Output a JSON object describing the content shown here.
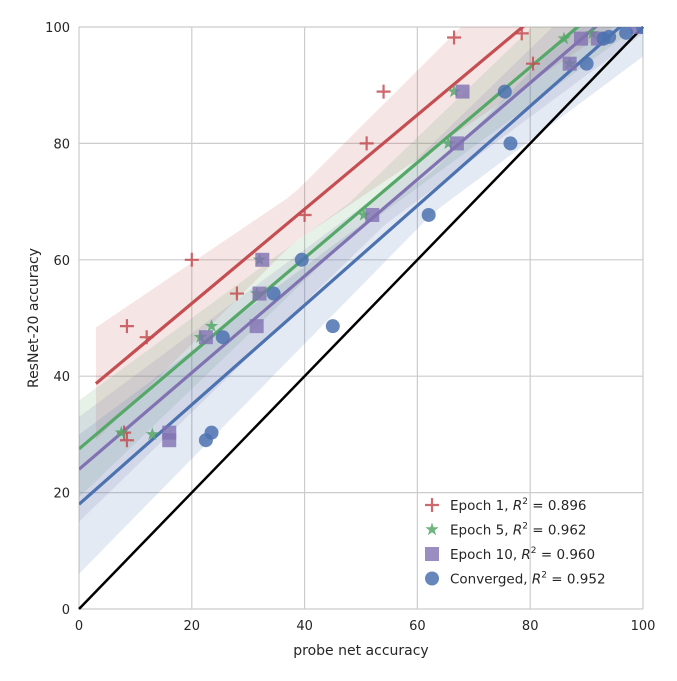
{
  "chart_data": {
    "type": "scatter",
    "xlabel": "probe net accuracy",
    "ylabel": "ResNet-20 accuracy",
    "xlim": [
      0,
      100
    ],
    "ylim": [
      0,
      100
    ],
    "xticks": [
      "0",
      "20",
      "40",
      "60",
      "80",
      "100"
    ],
    "yticks": [
      "0",
      "20",
      "40",
      "60",
      "80",
      "100"
    ],
    "grid": true,
    "legend_position": "bottom-right",
    "identity_line": true,
    "series": [
      {
        "name": "Epoch 1",
        "r2": "0.896",
        "marker": "plus",
        "color": "#c44e52",
        "fit": {
          "intercept": 36.3,
          "slope": 0.81,
          "xmin": 3,
          "xmax": 100
        },
        "points": [
          [
            8.5,
            48.6
          ],
          [
            12,
            46.7
          ],
          [
            20,
            60
          ],
          [
            28,
            54.2
          ],
          [
            40,
            67.7
          ],
          [
            51,
            80
          ],
          [
            54,
            88.9
          ],
          [
            66.5,
            98.2
          ],
          [
            78.5,
            98.9
          ],
          [
            80.5,
            93.7
          ],
          [
            8,
            30.3
          ],
          [
            8.5,
            29
          ]
        ]
      },
      {
        "name": "Epoch 5",
        "r2": "0.962",
        "marker": "star",
        "color": "#55a868",
        "fit": {
          "intercept": 27.5,
          "slope": 0.82,
          "xmin": 0,
          "xmax": 100
        },
        "points": [
          [
            7.5,
            30.3
          ],
          [
            13,
            30
          ],
          [
            21.5,
            46.7
          ],
          [
            23.5,
            48.6
          ],
          [
            31.5,
            54.2
          ],
          [
            32,
            60
          ],
          [
            50.5,
            67.7
          ],
          [
            65.5,
            80
          ],
          [
            66.5,
            88.9
          ],
          [
            86,
            98
          ],
          [
            87,
            93.7
          ],
          [
            91,
            98.9
          ]
        ]
      },
      {
        "name": "Epoch 10",
        "r2": "0.960",
        "marker": "square",
        "color": "#8172b2",
        "fit": {
          "intercept": 24,
          "slope": 0.83,
          "xmin": 0,
          "xmax": 100
        },
        "points": [
          [
            16,
            30.3
          ],
          [
            16,
            29
          ],
          [
            22.5,
            46.7
          ],
          [
            31.5,
            48.6
          ],
          [
            32,
            54.2
          ],
          [
            32.5,
            60
          ],
          [
            52,
            67.7
          ],
          [
            67,
            80
          ],
          [
            68,
            88.9
          ],
          [
            87,
            93.7
          ],
          [
            89,
            98
          ],
          [
            92,
            98
          ],
          [
            99,
            100
          ]
        ]
      },
      {
        "name": "Converged",
        "r2": "0.952",
        "marker": "circle",
        "color": "#4c72b0",
        "fit": {
          "intercept": 18,
          "slope": 0.855,
          "xmin": 0,
          "xmax": 100
        },
        "points": [
          [
            22.5,
            29
          ],
          [
            23.5,
            30.3
          ],
          [
            25.5,
            46.7
          ],
          [
            34.5,
            54.2
          ],
          [
            39.5,
            60
          ],
          [
            45,
            48.6
          ],
          [
            62,
            67.7
          ],
          [
            75.5,
            88.9
          ],
          [
            76.5,
            80
          ],
          [
            90,
            93.7
          ],
          [
            93,
            98
          ],
          [
            94,
            98.3
          ],
          [
            97,
            99
          ],
          [
            100,
            100
          ]
        ]
      }
    ]
  }
}
